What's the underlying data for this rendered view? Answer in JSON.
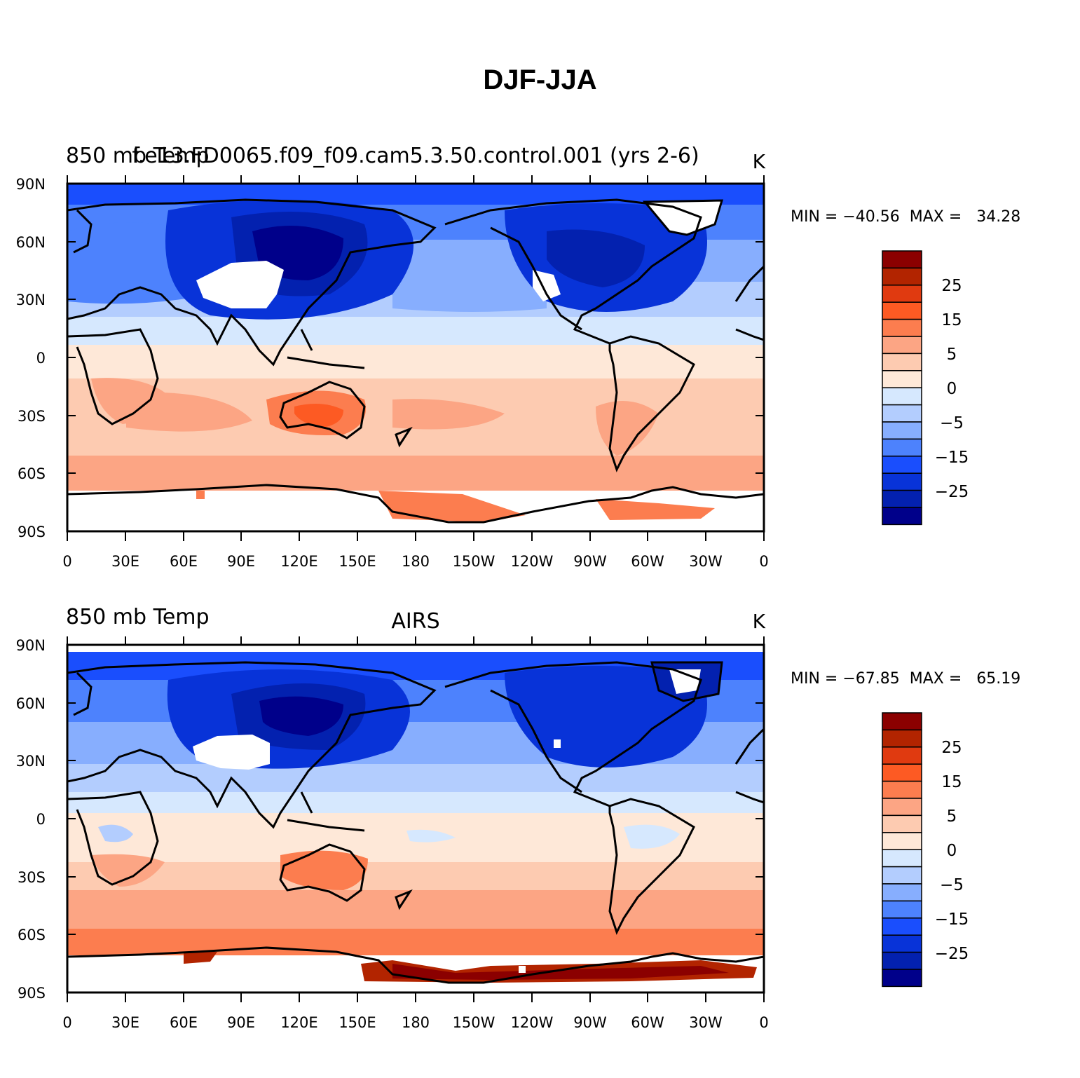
{
  "title": "DJF-JJA",
  "panels": [
    {
      "id": "model",
      "left_title": "850 mb Temp",
      "center_title": "f.e13.FD0065.f09_f09.cam5.3.50.control.001 (yrs 2-6)",
      "units": "K",
      "min_max": "MIN = −40.56  MAX =   34.28"
    },
    {
      "id": "obs",
      "left_title": "850 mb Temp",
      "center_title": "AIRS",
      "units": "K",
      "min_max": "MIN = −67.85  MAX =   65.19"
    }
  ],
  "lat_labels": [
    "90N",
    "60N",
    "30N",
    "0",
    "30S",
    "60S",
    "90S"
  ],
  "lon_labels": [
    "0",
    "30E",
    "60E",
    "90E",
    "120E",
    "150E",
    "180",
    "150W",
    "120W",
    "90W",
    "60W",
    "30W",
    "0"
  ],
  "colorbar": {
    "labels": [
      "25",
      "15",
      "5",
      "0",
      "−5",
      "−15",
      "−25"
    ],
    "colors": [
      "#8b0000",
      "#b22400",
      "#e03a10",
      "#fd5a23",
      "#fc7d4f",
      "#fca584",
      "#fdcbb1",
      "#fee8d8",
      "#d6e8fe",
      "#b3cdfe",
      "#87aefe",
      "#4d82fd",
      "#1a4efd",
      "#0833d8",
      "#0321af",
      "#00008a"
    ]
  },
  "colors": {
    "ocean_white": "#ffffff",
    "coast": "#000000"
  }
}
